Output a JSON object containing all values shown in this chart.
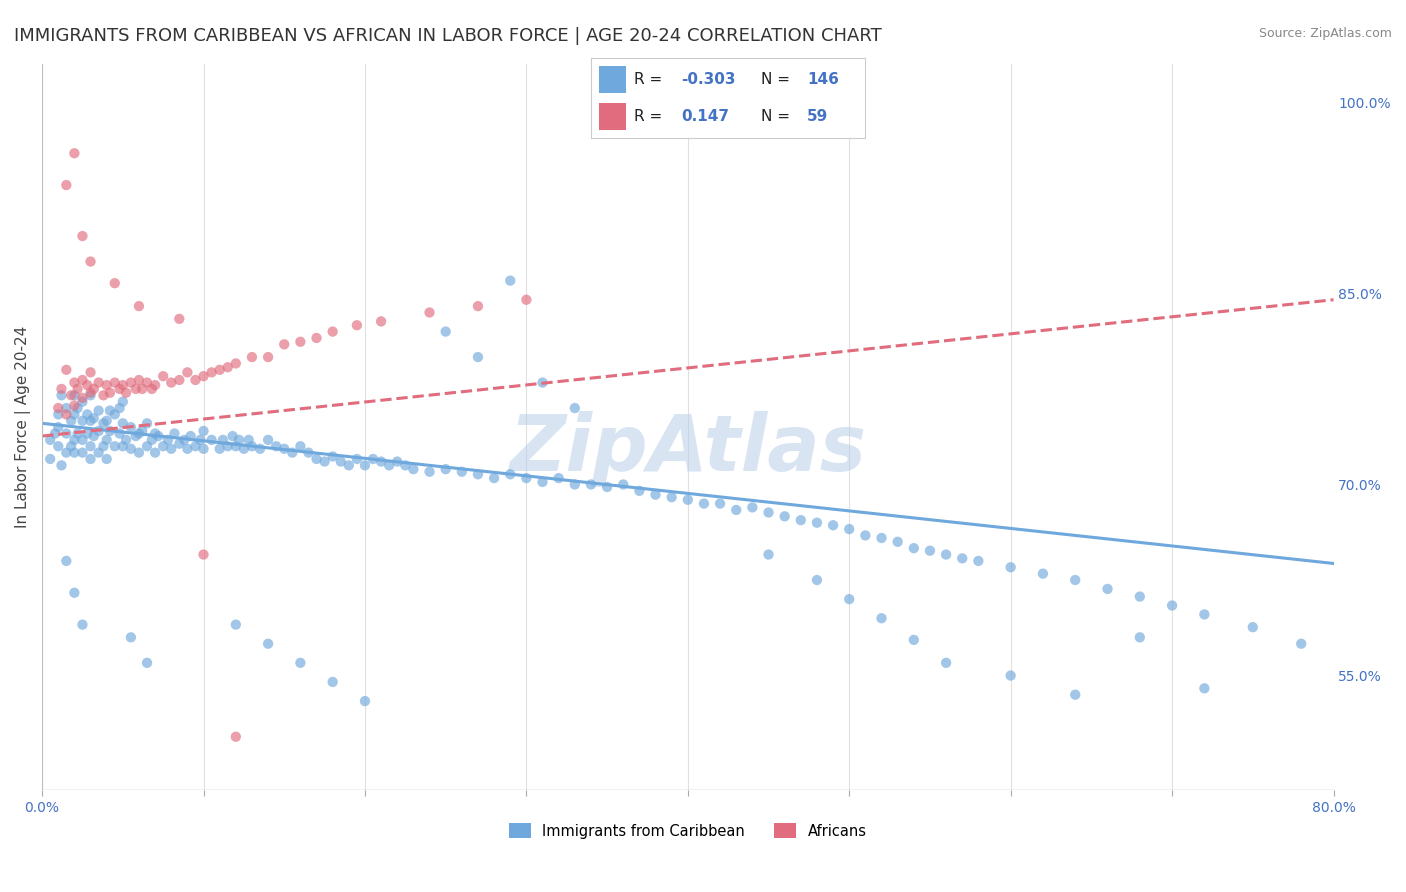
{
  "title": "IMMIGRANTS FROM CARIBBEAN VS AFRICAN IN LABOR FORCE | AGE 20-24 CORRELATION CHART",
  "source": "Source: ZipAtlas.com",
  "ylabel": "In Labor Force | Age 20-24",
  "xlim": [
    0.0,
    0.8
  ],
  "ylim": [
    0.46,
    1.03
  ],
  "xticks": [
    0.0,
    0.1,
    0.2,
    0.3,
    0.4,
    0.5,
    0.6,
    0.7,
    0.8
  ],
  "yticks_right": [
    0.55,
    0.7,
    0.85,
    1.0
  ],
  "ytick_right_labels": [
    "55.0%",
    "70.0%",
    "85.0%",
    "100.0%"
  ],
  "caribbean_color": "#6fa8dc",
  "african_color": "#e06c7d",
  "caribbean_R": -0.303,
  "caribbean_N": 146,
  "african_R": 0.147,
  "african_N": 59,
  "legend_label_1": "Immigrants from Caribbean",
  "legend_label_2": "Africans",
  "caribbean_scatter_x": [
    0.005,
    0.005,
    0.008,
    0.01,
    0.01,
    0.01,
    0.012,
    0.012,
    0.015,
    0.015,
    0.015,
    0.018,
    0.018,
    0.02,
    0.02,
    0.02,
    0.02,
    0.022,
    0.022,
    0.025,
    0.025,
    0.025,
    0.025,
    0.028,
    0.028,
    0.03,
    0.03,
    0.03,
    0.03,
    0.032,
    0.032,
    0.035,
    0.035,
    0.035,
    0.038,
    0.038,
    0.04,
    0.04,
    0.04,
    0.042,
    0.042,
    0.045,
    0.045,
    0.048,
    0.048,
    0.05,
    0.05,
    0.05,
    0.052,
    0.055,
    0.055,
    0.058,
    0.06,
    0.06,
    0.062,
    0.065,
    0.065,
    0.068,
    0.07,
    0.07,
    0.072,
    0.075,
    0.078,
    0.08,
    0.082,
    0.085,
    0.088,
    0.09,
    0.092,
    0.095,
    0.098,
    0.1,
    0.1,
    0.105,
    0.11,
    0.112,
    0.115,
    0.118,
    0.12,
    0.122,
    0.125,
    0.128,
    0.13,
    0.135,
    0.14,
    0.145,
    0.15,
    0.155,
    0.16,
    0.165,
    0.17,
    0.175,
    0.18,
    0.185,
    0.19,
    0.195,
    0.2,
    0.205,
    0.21,
    0.215,
    0.22,
    0.225,
    0.23,
    0.24,
    0.25,
    0.26,
    0.27,
    0.28,
    0.29,
    0.3,
    0.31,
    0.32,
    0.33,
    0.34,
    0.35,
    0.36,
    0.37,
    0.38,
    0.39,
    0.4,
    0.41,
    0.42,
    0.43,
    0.44,
    0.45,
    0.46,
    0.47,
    0.48,
    0.49,
    0.5,
    0.51,
    0.52,
    0.53,
    0.54,
    0.55,
    0.56,
    0.57,
    0.58,
    0.6,
    0.62,
    0.64,
    0.66,
    0.68,
    0.7,
    0.72,
    0.75,
    0.78
  ],
  "caribbean_scatter_y": [
    0.735,
    0.72,
    0.74,
    0.73,
    0.745,
    0.755,
    0.715,
    0.77,
    0.74,
    0.76,
    0.725,
    0.73,
    0.75,
    0.735,
    0.755,
    0.725,
    0.77,
    0.74,
    0.76,
    0.735,
    0.75,
    0.725,
    0.765,
    0.74,
    0.755,
    0.73,
    0.75,
    0.77,
    0.72,
    0.738,
    0.752,
    0.725,
    0.742,
    0.758,
    0.73,
    0.748,
    0.735,
    0.75,
    0.72,
    0.742,
    0.758,
    0.73,
    0.755,
    0.74,
    0.76,
    0.73,
    0.748,
    0.765,
    0.735,
    0.728,
    0.745,
    0.738,
    0.74,
    0.725,
    0.742,
    0.73,
    0.748,
    0.735,
    0.74,
    0.725,
    0.738,
    0.73,
    0.735,
    0.728,
    0.74,
    0.732,
    0.735,
    0.728,
    0.738,
    0.73,
    0.735,
    0.728,
    0.742,
    0.735,
    0.728,
    0.735,
    0.73,
    0.738,
    0.73,
    0.735,
    0.728,
    0.735,
    0.73,
    0.728,
    0.735,
    0.73,
    0.728,
    0.725,
    0.73,
    0.725,
    0.72,
    0.718,
    0.722,
    0.718,
    0.715,
    0.72,
    0.715,
    0.72,
    0.718,
    0.715,
    0.718,
    0.715,
    0.712,
    0.71,
    0.712,
    0.71,
    0.708,
    0.705,
    0.708,
    0.705,
    0.702,
    0.705,
    0.7,
    0.7,
    0.698,
    0.7,
    0.695,
    0.692,
    0.69,
    0.688,
    0.685,
    0.685,
    0.68,
    0.682,
    0.678,
    0.675,
    0.672,
    0.67,
    0.668,
    0.665,
    0.66,
    0.658,
    0.655,
    0.65,
    0.648,
    0.645,
    0.642,
    0.64,
    0.635,
    0.63,
    0.625,
    0.618,
    0.612,
    0.605,
    0.598,
    0.588,
    0.575
  ],
  "caribbean_outlier_x": [
    0.015,
    0.02,
    0.025,
    0.055,
    0.065,
    0.25,
    0.27,
    0.29,
    0.45,
    0.48,
    0.5,
    0.52,
    0.54,
    0.56,
    0.6,
    0.64,
    0.68,
    0.72,
    0.12,
    0.14,
    0.16,
    0.18,
    0.2,
    0.31,
    0.33
  ],
  "caribbean_outlier_y": [
    0.64,
    0.615,
    0.59,
    0.58,
    0.56,
    0.82,
    0.8,
    0.86,
    0.645,
    0.625,
    0.61,
    0.595,
    0.578,
    0.56,
    0.55,
    0.535,
    0.58,
    0.54,
    0.59,
    0.575,
    0.56,
    0.545,
    0.53,
    0.78,
    0.76
  ],
  "african_scatter_x": [
    0.01,
    0.012,
    0.015,
    0.015,
    0.018,
    0.02,
    0.02,
    0.022,
    0.025,
    0.025,
    0.028,
    0.03,
    0.03,
    0.032,
    0.035,
    0.038,
    0.04,
    0.042,
    0.045,
    0.048,
    0.05,
    0.052,
    0.055,
    0.058,
    0.06,
    0.062,
    0.065,
    0.068,
    0.07,
    0.075,
    0.08,
    0.085,
    0.09,
    0.095,
    0.1,
    0.105,
    0.11,
    0.115,
    0.12,
    0.13,
    0.14,
    0.15,
    0.16,
    0.17,
    0.18,
    0.195,
    0.21,
    0.24,
    0.27,
    0.3,
    0.015,
    0.02,
    0.025,
    0.03,
    0.045,
    0.06,
    0.085,
    0.1,
    0.12
  ],
  "african_scatter_y": [
    0.76,
    0.775,
    0.79,
    0.755,
    0.77,
    0.78,
    0.762,
    0.775,
    0.768,
    0.782,
    0.778,
    0.772,
    0.788,
    0.775,
    0.78,
    0.77,
    0.778,
    0.772,
    0.78,
    0.775,
    0.778,
    0.772,
    0.78,
    0.775,
    0.782,
    0.775,
    0.78,
    0.775,
    0.778,
    0.785,
    0.78,
    0.782,
    0.788,
    0.782,
    0.785,
    0.788,
    0.79,
    0.792,
    0.795,
    0.8,
    0.8,
    0.81,
    0.812,
    0.815,
    0.82,
    0.825,
    0.828,
    0.835,
    0.84,
    0.845,
    0.935,
    0.96,
    0.895,
    0.875,
    0.858,
    0.84,
    0.83,
    0.645,
    0.502
  ],
  "blue_trend_x": [
    0.0,
    0.8
  ],
  "blue_trend_y": [
    0.748,
    0.638
  ],
  "pink_trend_x": [
    0.0,
    0.8
  ],
  "pink_trend_y": [
    0.738,
    0.845
  ],
  "grid_color": "#e0e0e0",
  "watermark_color": "#b8cfe8",
  "title_fontsize": 13,
  "axis_label_fontsize": 11,
  "tick_fontsize": 10,
  "scatter_size": 55,
  "scatter_alpha": 0.65
}
